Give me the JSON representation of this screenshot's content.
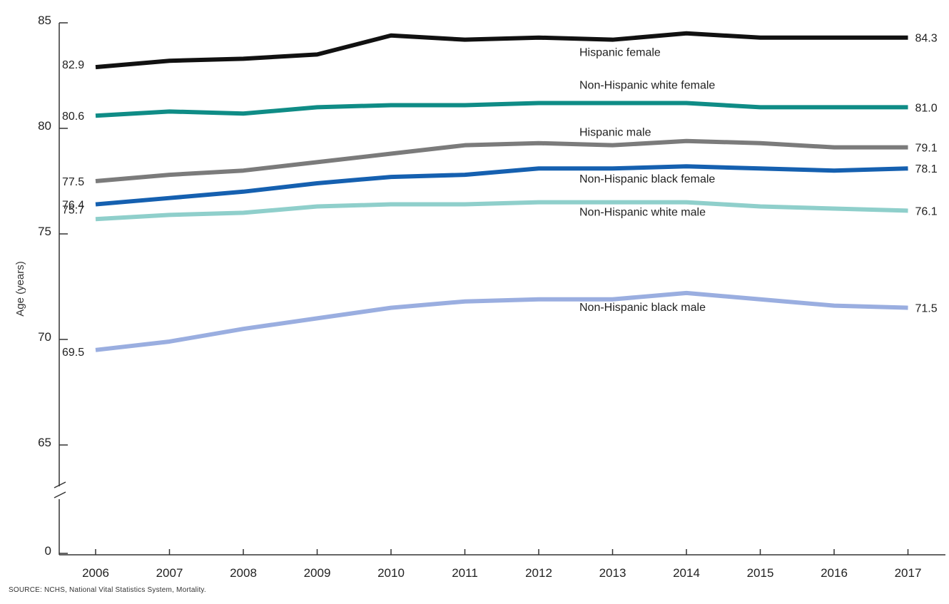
{
  "source_note": "SOURCE: NCHS, National Vital Statistics System, Mortality.",
  "chart_data": {
    "type": "line",
    "title": "",
    "xlabel": "",
    "ylabel": "Age (years)",
    "x": [
      2006,
      2007,
      2008,
      2009,
      2010,
      2011,
      2012,
      2013,
      2014,
      2015,
      2016,
      2017
    ],
    "x_tick_labels": [
      "2006",
      "2007",
      "2008",
      "2009",
      "2010",
      "2011",
      "2012",
      "2013",
      "2014",
      "2015",
      "2016",
      "2017"
    ],
    "y_ticks": [
      0,
      65,
      70,
      75,
      80,
      85
    ],
    "y_tick_labels": [
      "0",
      "65",
      "70",
      "75",
      "80",
      "85"
    ],
    "ylim": [
      0,
      85
    ],
    "axis_break": "between 0 and 65",
    "grid": false,
    "legend": "none (series labeled inline)",
    "series": [
      {
        "name": "Hispanic female",
        "color": "#111111",
        "values": [
          82.9,
          83.2,
          83.3,
          83.5,
          84.4,
          84.2,
          84.3,
          84.2,
          84.5,
          84.3,
          84.3,
          84.3
        ],
        "start_label": "82.9",
        "end_label": "84.3"
      },
      {
        "name": "Non-Hispanic white female",
        "color": "#0f8c86",
        "values": [
          80.6,
          80.8,
          80.7,
          81.0,
          81.1,
          81.1,
          81.2,
          81.2,
          81.2,
          81.0,
          81.0,
          81.0
        ],
        "start_label": "80.6",
        "end_label": "81.0"
      },
      {
        "name": "Hispanic male",
        "color": "#7b7b7b",
        "values": [
          77.5,
          77.8,
          78.0,
          78.4,
          78.8,
          79.2,
          79.3,
          79.2,
          79.4,
          79.3,
          79.1,
          79.1
        ],
        "start_label": "77.5",
        "end_label": "79.1"
      },
      {
        "name": "Non-Hispanic black female",
        "color": "#1560b0",
        "values": [
          76.4,
          76.7,
          77.0,
          77.4,
          77.7,
          77.8,
          78.1,
          78.1,
          78.2,
          78.1,
          78.0,
          78.1
        ],
        "start_label": "76.4",
        "end_label": "78.1"
      },
      {
        "name": "Non-Hispanic white male",
        "color": "#8fcfcb",
        "values": [
          75.7,
          75.9,
          76.0,
          76.3,
          76.4,
          76.4,
          76.5,
          76.5,
          76.5,
          76.3,
          76.2,
          76.1
        ],
        "start_label": "75.7",
        "end_label": "76.1"
      },
      {
        "name": "Non-Hispanic black male",
        "color": "#9aaee0",
        "values": [
          69.5,
          69.9,
          70.5,
          71.0,
          71.5,
          71.8,
          71.9,
          71.9,
          72.2,
          71.9,
          71.6,
          71.5
        ],
        "start_label": "69.5",
        "end_label": "71.5"
      }
    ]
  }
}
